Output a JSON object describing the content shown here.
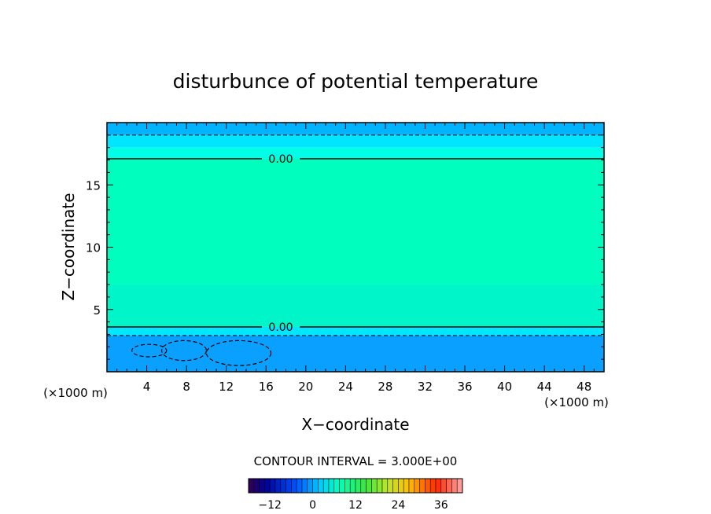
{
  "chart_data": {
    "type": "heatmap",
    "title": "disturbunce of potential temperature",
    "xlabel": "X−coordinate",
    "ylabel": "Z−coordinate",
    "x_unit_left": "(×1000 m)",
    "x_unit_right": "(×1000 m)",
    "xlim": [
      0,
      50
    ],
    "ylim": [
      0,
      20
    ],
    "x_ticks": [
      4,
      8,
      12,
      16,
      20,
      24,
      28,
      32,
      36,
      40,
      44,
      48
    ],
    "y_ticks": [
      5,
      10,
      15
    ],
    "layers": [
      {
        "z": [
          19.0,
          20.0
        ],
        "value": -4.5,
        "color": "#00b4ff"
      },
      {
        "z": [
          18.0,
          19.0
        ],
        "value": -1.5,
        "color": "#00e6ff"
      },
      {
        "z": [
          17.1,
          18.0
        ],
        "value": -0.5,
        "color": "#00ffe6"
      },
      {
        "z": [
          7.0,
          17.1
        ],
        "value": 1.5,
        "color": "#00ffbe"
      },
      {
        "z": [
          3.6,
          7.0
        ],
        "value": 1.0,
        "color": "#00f5c8"
      },
      {
        "z": [
          2.9,
          3.6
        ],
        "value": -0.5,
        "color": "#00e6ff"
      },
      {
        "z": [
          0.0,
          2.9
        ],
        "value": -4.5,
        "color": "#0aa0ff"
      }
    ],
    "contours": [
      {
        "z": 19.0,
        "style": "dashed",
        "label": ""
      },
      {
        "z": 17.1,
        "style": "solid",
        "label": "0.00"
      },
      {
        "z": 3.6,
        "style": "solid",
        "label": "0.00"
      },
      {
        "z": 2.9,
        "style": "dashed",
        "label": ""
      }
    ],
    "cells": [
      {
        "x": [
          2.5,
          6.0
        ],
        "z": [
          1.2,
          2.2
        ]
      },
      {
        "x": [
          5.5,
          10.0
        ],
        "z": [
          0.9,
          2.5
        ]
      },
      {
        "x": [
          10.0,
          16.5
        ],
        "z": [
          0.5,
          2.5
        ]
      }
    ],
    "contour_interval": "CONTOUR INTERVAL = 3.000E+00",
    "colorbar": {
      "min": -18,
      "max": 42,
      "step": 1.5,
      "ticks": [
        -12,
        0,
        12,
        24,
        36
      ]
    }
  }
}
